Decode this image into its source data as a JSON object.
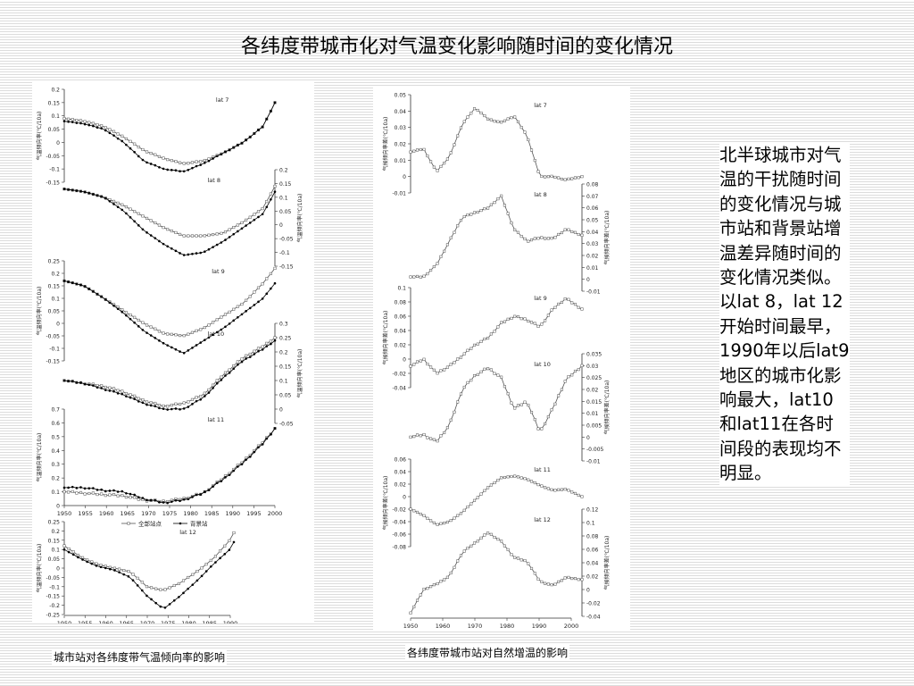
{
  "slide": {
    "title": "各纬度带城市化对气温变化影响随时间的变化情况",
    "side_text": "北半球城市对气温的干扰随时间的变化情况与城市站和背景站增温差异随时间的变化情况类似。以lat 8，lat 12开始时间最早，1990年以后lat9地区的城市化影响最大，lat10和lat11在各时间段的表现均不明显。"
  },
  "captions": {
    "left": "城市站对各纬度带气温倾向率的影响",
    "right": "各纬度带城市站对自然增温的影响"
  },
  "colors": {
    "series_all": "#555555",
    "series_bg": "#000000",
    "axis": "#333333"
  },
  "chart_data": [
    {
      "type": "line",
      "x_tick_labels": [
        "1950",
        "1955",
        "1960",
        "1965",
        "1970",
        "1975",
        "1980",
        "1985",
        "1990",
        "1995",
        "2000"
      ],
      "ylabel": "气温倾向率(℃/10a)",
      "legend": [
        "全部站点",
        "背景站"
      ],
      "panels": [
        {
          "label": "lat 7",
          "side": "left",
          "ylim": [
            -0.15,
            0.2
          ],
          "yticks": [
            "0.2",
            "0.15",
            "0.1",
            "0.05",
            "0",
            "-0.05",
            "-0.1",
            "-0.15"
          ],
          "x": [
            1950,
            1955,
            1960,
            1965,
            1970,
            1975,
            1980,
            1985,
            1990,
            1995,
            2000,
            2003
          ],
          "series": [
            {
              "name": "全部站点",
              "values": [
                0.09,
                0.08,
                0.06,
                0.02,
                -0.03,
                -0.06,
                -0.08,
                -0.07,
                -0.04,
                0.0,
                0.06,
                0.15
              ]
            },
            {
              "name": "背景站",
              "values": [
                0.08,
                0.07,
                0.05,
                0.0,
                -0.07,
                -0.1,
                -0.11,
                -0.08,
                -0.04,
                0.0,
                0.06,
                0.15
              ]
            }
          ]
        },
        {
          "label": "lat 8",
          "side": "right",
          "ylim": [
            -0.15,
            0.2
          ],
          "yticks": [
            "0.2",
            "0.15",
            "0.1",
            "0.05",
            "0",
            "-0.05",
            "-0.1",
            "-0.15"
          ],
          "x": [
            1950,
            1955,
            1960,
            1965,
            1970,
            1975,
            1980,
            1985,
            1990,
            1995,
            2000,
            2003
          ],
          "series": [
            {
              "name": "全部站点",
              "values": [
                0.13,
                0.12,
                0.1,
                0.07,
                0.03,
                -0.01,
                -0.04,
                -0.04,
                -0.03,
                0.01,
                0.06,
                0.14
              ]
            },
            {
              "name": "背景站",
              "values": [
                0.13,
                0.12,
                0.1,
                0.05,
                -0.02,
                -0.07,
                -0.11,
                -0.1,
                -0.06,
                -0.01,
                0.04,
                0.12
              ]
            }
          ]
        },
        {
          "label": "lat 9",
          "side": "left",
          "ylim": [
            -0.15,
            0.25
          ],
          "yticks": [
            "0.25",
            "0.2",
            "0.15",
            "0.1",
            "0.05",
            "0",
            "-0.05",
            "-0.1",
            "-0.15"
          ],
          "x": [
            1950,
            1955,
            1960,
            1965,
            1970,
            1975,
            1980,
            1985,
            1990,
            1995,
            2000,
            2003
          ],
          "series": [
            {
              "name": "全部站点",
              "values": [
                0.17,
                0.15,
                0.1,
                0.05,
                0.0,
                -0.04,
                -0.05,
                -0.02,
                0.03,
                0.08,
                0.16,
                0.22
              ]
            },
            {
              "name": "背景站",
              "values": [
                0.17,
                0.15,
                0.1,
                0.04,
                -0.03,
                -0.08,
                -0.12,
                -0.07,
                -0.02,
                0.04,
                0.1,
                0.16
              ]
            }
          ]
        },
        {
          "label": "lat 10",
          "side": "right",
          "ylim": [
            -0.05,
            0.3
          ],
          "yticks": [
            "0.3",
            "0.25",
            "0.2",
            "0.15",
            "0.1",
            "0.05",
            "0",
            "-0.05"
          ],
          "x": [
            1950,
            1955,
            1960,
            1965,
            1970,
            1975,
            1980,
            1985,
            1990,
            1995,
            2000,
            2003
          ],
          "series": [
            {
              "name": "全部站点",
              "values": [
                0.1,
                0.09,
                0.08,
                0.06,
                0.03,
                0.01,
                0.02,
                0.05,
                0.12,
                0.18,
                0.22,
                0.25
              ]
            },
            {
              "name": "背景站",
              "values": [
                0.1,
                0.09,
                0.07,
                0.05,
                0.02,
                0.0,
                0.0,
                0.04,
                0.11,
                0.17,
                0.21,
                0.24
              ]
            }
          ]
        },
        {
          "label": "lat 11",
          "side": "left",
          "ylim": [
            0,
            0.7
          ],
          "yticks": [
            "0.7",
            "0.6",
            "0.5",
            "0.4",
            "0.3",
            "0.2",
            "0.1",
            "0"
          ],
          "x": [
            1950,
            1955,
            1960,
            1965,
            1970,
            1975,
            1980,
            1985,
            1990,
            1995,
            2000,
            2003
          ],
          "series": [
            {
              "name": "全部站点",
              "values": [
                0.1,
                0.09,
                0.08,
                0.07,
                0.04,
                0.03,
                0.05,
                0.09,
                0.2,
                0.32,
                0.46,
                0.56
              ]
            },
            {
              "name": "背景站",
              "values": [
                0.13,
                0.13,
                0.11,
                0.1,
                0.05,
                0.02,
                0.04,
                0.09,
                0.19,
                0.31,
                0.45,
                0.56
              ]
            }
          ]
        },
        {
          "label": "lat 12",
          "side": "left",
          "ylim": [
            -0.25,
            0.25
          ],
          "yticks": [
            "0.25",
            "0.2",
            "0.15",
            "0.1",
            "0.05",
            "0",
            "-0.05",
            "-0.1",
            "-0.15",
            "-0.2",
            "-0.25"
          ],
          "x_tick_labels": [
            "1950",
            "1955",
            "1960",
            "1965",
            "1970",
            "1975",
            "1980",
            "1985",
            "1990"
          ],
          "x": [
            1950,
            1954,
            1958,
            1962,
            1966,
            1970,
            1974,
            1978,
            1982,
            1986,
            1990,
            1991
          ],
          "series": [
            {
              "name": "全部站点",
              "values": [
                0.12,
                0.06,
                0.02,
                0.0,
                -0.02,
                -0.1,
                -0.12,
                -0.08,
                -0.02,
                0.05,
                0.15,
                0.19
              ]
            },
            {
              "name": "背景站",
              "values": [
                0.1,
                0.05,
                0.01,
                -0.01,
                -0.05,
                -0.15,
                -0.22,
                -0.15,
                -0.07,
                0.02,
                0.1,
                0.14
              ]
            }
          ]
        }
      ]
    },
    {
      "type": "line",
      "x_tick_labels": [
        "1950",
        "1960",
        "1970",
        "1980",
        "1990",
        "2000"
      ],
      "ylabel": "气候倾向率差(℃/10a)",
      "panels": [
        {
          "label": "lat 7",
          "side": "left",
          "ylim": [
            -0.01,
            0.05
          ],
          "yticks": [
            "0.05",
            "0.04",
            "0.03",
            "0.02",
            "0.01",
            "0",
            "-0.01"
          ],
          "x": [
            1950,
            1954,
            1958,
            1962,
            1966,
            1970,
            1974,
            1978,
            1982,
            1986,
            1990,
            1994,
            1998,
            2003
          ],
          "values": [
            0.015,
            0.017,
            0.003,
            0.012,
            0.032,
            0.042,
            0.035,
            0.033,
            0.037,
            0.025,
            0.0,
            0.0,
            -0.002,
            0.0
          ]
        },
        {
          "label": "lat 8",
          "side": "right",
          "ylim": [
            -0.01,
            0.08
          ],
          "yticks": [
            "0.08",
            "0.07",
            "0.06",
            "0.05",
            "0.04",
            "0.03",
            "0.02",
            "0.01",
            "0",
            "-0.01"
          ],
          "x": [
            1950,
            1954,
            1958,
            1962,
            1966,
            1970,
            1974,
            1978,
            1982,
            1986,
            1990,
            1994,
            1998,
            2003
          ],
          "values": [
            0.002,
            0.002,
            0.012,
            0.032,
            0.052,
            0.056,
            0.06,
            0.07,
            0.042,
            0.032,
            0.035,
            0.034,
            0.042,
            0.037
          ]
        },
        {
          "label": "lat 9",
          "side": "left",
          "ylim": [
            -0.04,
            0.1
          ],
          "yticks": [
            "0.1",
            "0.08",
            "0.06",
            "0.04",
            "0.02",
            "0",
            "-0.02",
            "-0.04"
          ],
          "x": [
            1950,
            1954,
            1958,
            1962,
            1966,
            1970,
            1974,
            1978,
            1982,
            1986,
            1990,
            1994,
            1998,
            2003
          ],
          "values": [
            -0.01,
            0.0,
            -0.02,
            -0.01,
            0.005,
            0.02,
            0.03,
            0.05,
            0.06,
            0.055,
            0.045,
            0.07,
            0.085,
            0.07
          ]
        },
        {
          "label": "lat 10",
          "side": "right",
          "ylim": [
            -0.01,
            0.035
          ],
          "yticks": [
            "0.035",
            "0.03",
            "0.025",
            "0.02",
            "0.015",
            "0.01",
            "0.005",
            "0",
            "-0.005",
            "-0.01"
          ],
          "x": [
            1950,
            1954,
            1958,
            1962,
            1966,
            1970,
            1974,
            1978,
            1982,
            1986,
            1990,
            1994,
            1998,
            2003
          ],
          "values": [
            0.0,
            0.001,
            -0.002,
            0.005,
            0.02,
            0.026,
            0.029,
            0.025,
            0.012,
            0.015,
            0.002,
            0.012,
            0.024,
            0.03
          ]
        },
        {
          "label": "lat 11",
          "side": "left",
          "ylim": [
            -0.08,
            0.06
          ],
          "yticks": [
            "0.06",
            "0.04",
            "0.02",
            "0",
            "-0.02",
            "-0.04",
            "-0.06",
            "-0.08"
          ],
          "x": [
            1950,
            1954,
            1958,
            1962,
            1966,
            1970,
            1974,
            1978,
            1982,
            1986,
            1990,
            1994,
            1998,
            2003
          ],
          "values": [
            -0.02,
            -0.03,
            -0.045,
            -0.04,
            -0.025,
            -0.005,
            0.015,
            0.03,
            0.033,
            0.028,
            0.018,
            0.01,
            0.012,
            0.0
          ]
        },
        {
          "label": "lat 12",
          "side": "right",
          "ylim": [
            -0.04,
            0.12
          ],
          "yticks": [
            "0.12",
            "0.1",
            "0.08",
            "0.06",
            "0.04",
            "0.02",
            "0",
            "-0.02",
            "-0.04"
          ],
          "x": [
            1950,
            1954,
            1958,
            1962,
            1966,
            1970,
            1974,
            1978,
            1982,
            1986,
            1990,
            1994,
            1998,
            2003
          ],
          "values": [
            -0.035,
            0.0,
            0.008,
            0.02,
            0.055,
            0.07,
            0.085,
            0.072,
            0.048,
            0.042,
            0.012,
            0.006,
            0.018,
            0.015
          ]
        }
      ]
    }
  ]
}
